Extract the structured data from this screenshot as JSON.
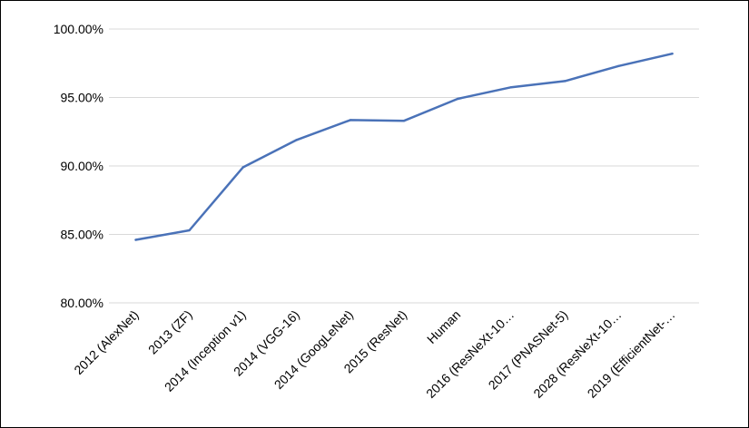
{
  "chart_data": {
    "type": "line",
    "title": "",
    "xlabel": "",
    "ylabel": "",
    "categories": [
      "2012 (AlexNet)",
      "2013 (ZF)",
      "2014 (Inception v1)",
      "2014 (VGG-16)",
      "2014 (GoogLeNet)",
      "2015 (ResNet)",
      "Human",
      "2016 (ResNeXt-10…",
      "2017 (PNASNet-5)",
      "2028 (ResNeXt-10…",
      "2019 (EfficientNet-…"
    ],
    "series": [
      {
        "values": [
          84.6,
          85.3,
          89.9,
          91.9,
          93.35,
          93.3,
          94.9,
          95.75,
          96.2,
          97.3,
          98.2
        ]
      }
    ],
    "ylim": [
      80,
      100
    ],
    "yticks": [
      80,
      85,
      90,
      95,
      100
    ],
    "ytick_labels": [
      "80.00%",
      "85.00%",
      "90.00%",
      "95.00%",
      "100.00%"
    ],
    "grid": true,
    "legend": "none",
    "line_color": "#4a72b8",
    "grid_color": "#d9d9d9"
  }
}
